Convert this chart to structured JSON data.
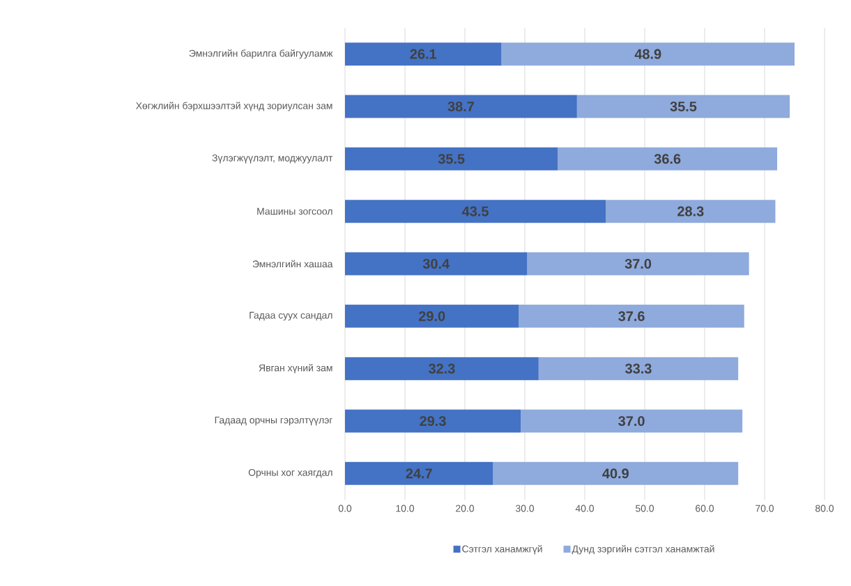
{
  "chart_data": {
    "type": "bar",
    "orientation": "horizontal",
    "stacked": true,
    "categories": [
      "Эмнэлгийн барилга байгууламж",
      "Хөгжлийн бэрхшээлтэй хүнд зориулсан зам",
      "Зүлэгжүүлэлт, моджуулалт",
      "Машины зогсоол",
      "Эмнэлгийн хашаа",
      "Гадаа суух сандал",
      "Явган хүний зам",
      "Гадаад орчны гэрэлтүүлэг",
      "Орчны хог хаягдал"
    ],
    "series": [
      {
        "name": "Сэтгэл ханамжгүй",
        "color": "#4472c4",
        "values": [
          26.1,
          38.7,
          35.5,
          43.5,
          30.4,
          29.0,
          32.3,
          29.3,
          24.7
        ],
        "value_labels": [
          "26.1",
          "38.7",
          "35.5",
          "43.5",
          "30.4",
          "29.0",
          "32.3",
          "29.3",
          "24.7"
        ]
      },
      {
        "name": "Дунд зэргийн сэтгэл ханамжтай",
        "color": "#8faadc",
        "values": [
          48.9,
          35.5,
          36.6,
          28.3,
          37.0,
          37.6,
          33.3,
          37.0,
          40.9
        ],
        "value_labels": [
          "48.9",
          "35.5",
          "36.6",
          "28.3",
          "37.0",
          "37.6",
          "33.3",
          "37.0",
          "40.9"
        ]
      }
    ],
    "xlim": [
      0,
      80
    ],
    "xticks": [
      {
        "value": 0,
        "label": "0.0"
      },
      {
        "value": 10,
        "label": "10.0"
      },
      {
        "value": 20,
        "label": "20.0"
      },
      {
        "value": 30,
        "label": "30.0"
      },
      {
        "value": 40,
        "label": "40.0"
      },
      {
        "value": 50,
        "label": "50.0"
      },
      {
        "value": 60,
        "label": "60.0"
      },
      {
        "value": 70,
        "label": "70.0"
      },
      {
        "value": 80,
        "label": "80.0"
      }
    ],
    "grid": "x",
    "legend": "bottom"
  }
}
